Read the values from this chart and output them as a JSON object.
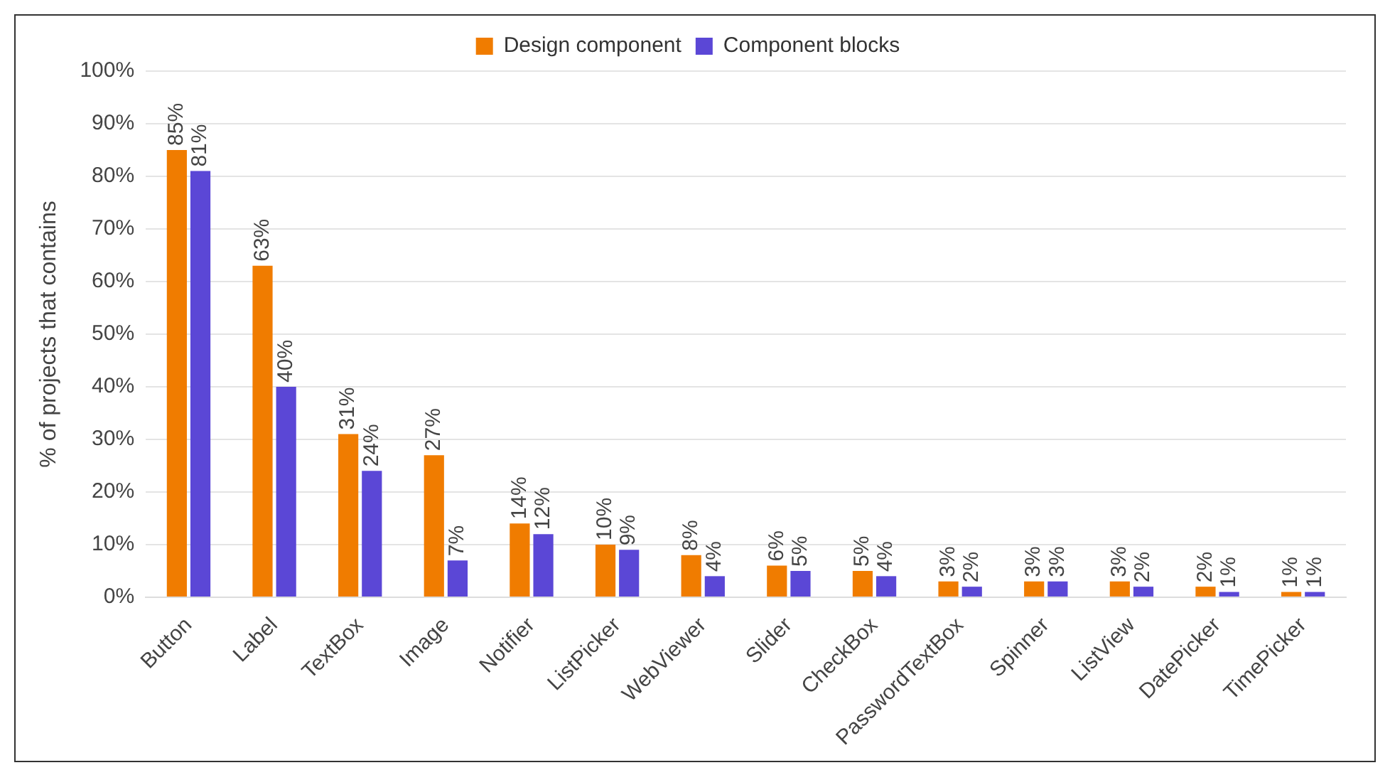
{
  "chart_data": {
    "type": "bar",
    "ylabel": "% of projects that contains",
    "categories": [
      "Button",
      "Label",
      "TextBox",
      "Image",
      "Notifier",
      "ListPicker",
      "WebViewer",
      "Slider",
      "CheckBox",
      "PasswordTextBox",
      "Spinner",
      "ListView",
      "DatePicker",
      "TimePicker"
    ],
    "series": [
      {
        "name": "Design component",
        "color": "#f07c00",
        "values": [
          85,
          63,
          31,
          27,
          14,
          10,
          8,
          6,
          5,
          3,
          3,
          3,
          2,
          1
        ],
        "value_labels": [
          "85%",
          "63%",
          "31%",
          "27%",
          "14%",
          "10%",
          "8%",
          "6%",
          "5%",
          "3%",
          "3%",
          "3%",
          "2%",
          "1%"
        ]
      },
      {
        "name": "Component blocks",
        "color": "#5b47d6",
        "values": [
          81,
          40,
          24,
          7,
          12,
          9,
          4,
          5,
          4,
          2,
          3,
          2,
          1,
          1
        ],
        "value_labels": [
          "81%",
          "40%",
          "24%",
          "7%",
          "12%",
          "9%",
          "4%",
          "5%",
          "4%",
          "2%",
          "3%",
          "2%",
          "1%",
          "1%"
        ]
      }
    ],
    "ylim": [
      0,
      100
    ],
    "yticks": [
      {
        "value": 0,
        "label": "0%"
      },
      {
        "value": 10,
        "label": "10%"
      },
      {
        "value": 20,
        "label": "20%"
      },
      {
        "value": 30,
        "label": "30%"
      },
      {
        "value": 40,
        "label": "40%"
      },
      {
        "value": 50,
        "label": "50%"
      },
      {
        "value": 60,
        "label": "60%"
      },
      {
        "value": 70,
        "label": "70%"
      },
      {
        "value": 80,
        "label": "80%"
      },
      {
        "value": 90,
        "label": "90%"
      },
      {
        "value": 100,
        "label": "100%"
      }
    ],
    "grid": "y",
    "legend": "top"
  }
}
